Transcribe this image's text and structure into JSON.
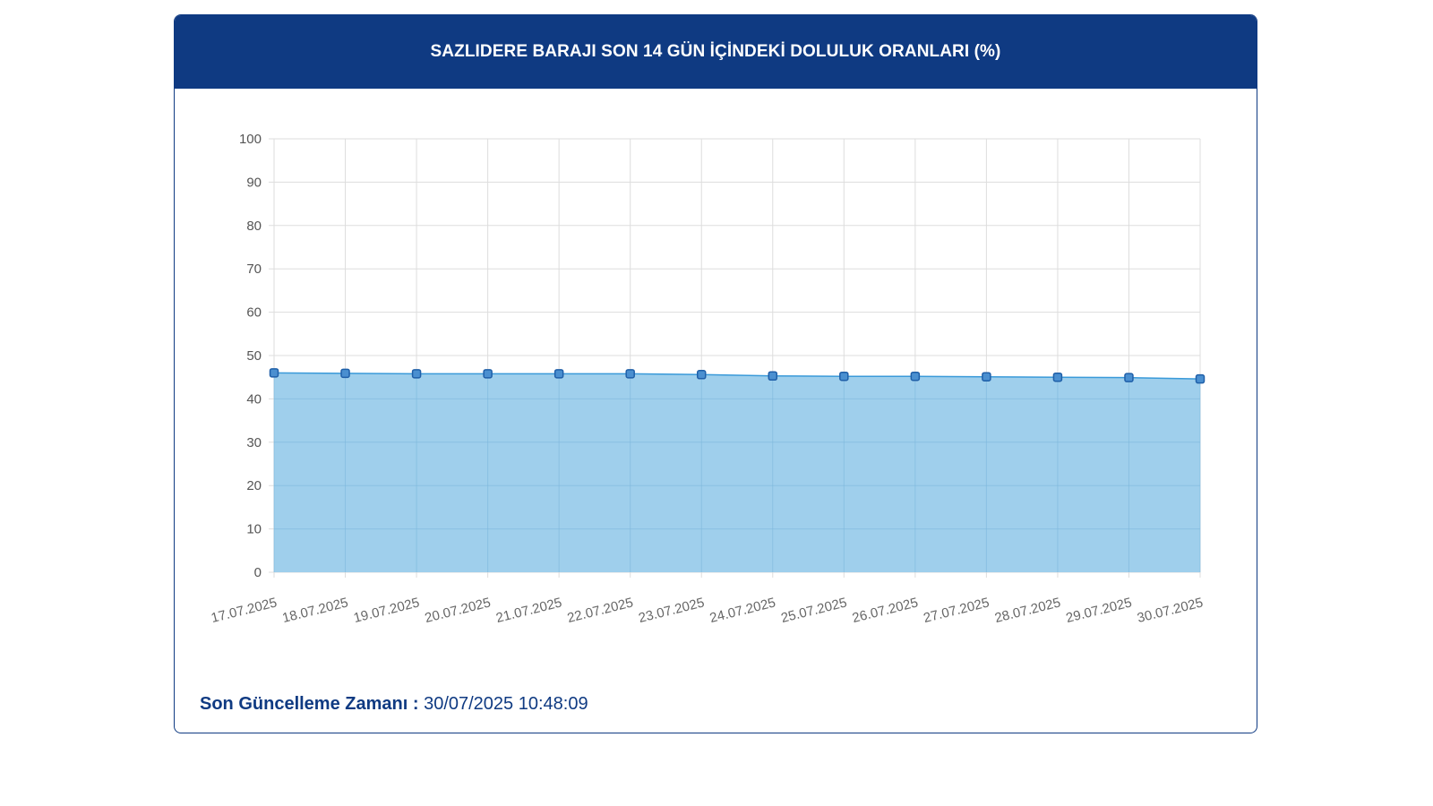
{
  "header": {
    "title": "SAZLIDERE BARAJI SON 14 GÜN İÇİNDEKİ DOLULUK ORANLARI (%)"
  },
  "footer": {
    "label": "Son Güncelleme Zamanı :",
    "value": "30/07/2025 10:48:09"
  },
  "colors": {
    "header_bg": "#0f3a82",
    "area_fill": "#9fcfec",
    "line": "#3a9ad9",
    "point_fill": "#4a8fd0",
    "point_stroke": "#1f5fa8",
    "grid": "#dddddd"
  },
  "chart_data": {
    "type": "area",
    "x": [
      "17.07.2025",
      "18.07.2025",
      "19.07.2025",
      "20.07.2025",
      "21.07.2025",
      "22.07.2025",
      "23.07.2025",
      "24.07.2025",
      "25.07.2025",
      "26.07.2025",
      "27.07.2025",
      "28.07.2025",
      "29.07.2025",
      "30.07.2025"
    ],
    "series": [
      {
        "values": [
          46.0,
          45.9,
          45.8,
          45.8,
          45.8,
          45.8,
          45.6,
          45.3,
          45.2,
          45.2,
          45.1,
          45.0,
          44.9,
          44.6
        ]
      }
    ],
    "ylim": [
      0,
      100
    ],
    "yticks": [
      0,
      10,
      20,
      30,
      40,
      50,
      60,
      70,
      80,
      90,
      100
    ],
    "grid": true,
    "legend": "none"
  }
}
